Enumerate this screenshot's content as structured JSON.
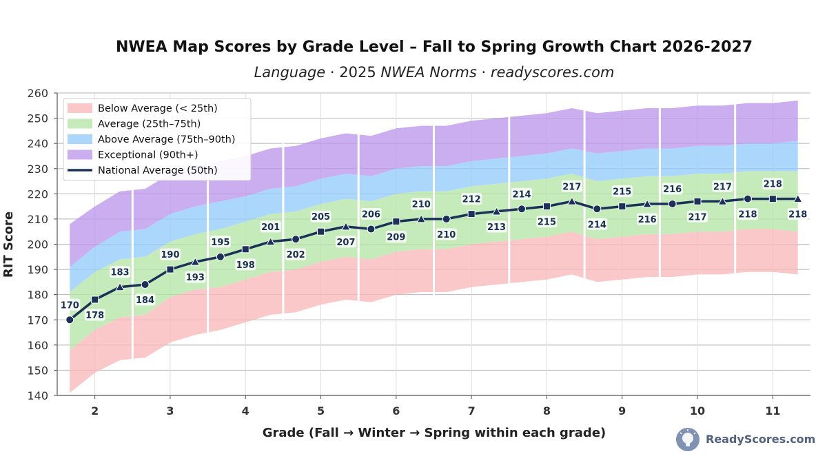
{
  "title": "NWEA Map Scores by Grade Level – Fall to Spring Growth Chart 2026-2027",
  "subtitle": {
    "part1": "Language",
    "sep1": "·",
    "part2_plain": "2025",
    "part2_italic": "NWEA Norms",
    "sep2": "·",
    "part3": "readyscores.com"
  },
  "brand": {
    "text": "ReadyScores.com",
    "icon": "lightbulb-brain-icon"
  },
  "chart_data": {
    "type": "area",
    "title": "NWEA Map Scores by Grade Level – Fall to Spring Growth Chart 2026-2027",
    "xlabel": "Grade (Fall → Winter → Spring within each grade)",
    "ylabel": "RIT Score",
    "ylim": [
      140,
      260
    ],
    "yticks": [
      140,
      150,
      160,
      170,
      180,
      190,
      200,
      210,
      220,
      230,
      240,
      250,
      260
    ],
    "xlim": [
      1.5,
      11.5
    ],
    "xticks": [
      "2",
      "3",
      "4",
      "5",
      "6",
      "7",
      "8",
      "9",
      "10",
      "11"
    ],
    "grid": true,
    "legend_position": "upper-left",
    "x": [
      1.667,
      2.0,
      2.333,
      2.667,
      3.0,
      3.333,
      3.667,
      4.0,
      4.333,
      4.667,
      5.0,
      5.333,
      5.667,
      6.0,
      6.333,
      6.667,
      7.0,
      7.333,
      7.667,
      8.0,
      8.333,
      8.667,
      9.0,
      9.333,
      9.667,
      10.0,
      10.333,
      10.667,
      11.0,
      11.333
    ],
    "season_markers": [
      "circle",
      "square",
      "triangle"
    ],
    "bands": [
      {
        "name": "Below Average (< 25th)",
        "color": "#f8b9b9",
        "lower": [
          141,
          149,
          154,
          155,
          161,
          164,
          166,
          169,
          172,
          173,
          176,
          178,
          177,
          180,
          181,
          181,
          183,
          184,
          185,
          186,
          188,
          185,
          186,
          187,
          187,
          188,
          188,
          189,
          189,
          188
        ],
        "upper": [
          158,
          166,
          171,
          172,
          179,
          182,
          183,
          186,
          189,
          190,
          193,
          195,
          194,
          197,
          198,
          198,
          200,
          201,
          202,
          203,
          205,
          202,
          203,
          204,
          204,
          205,
          205,
          206,
          206,
          205
        ]
      },
      {
        "name": "Average (25th–75th)",
        "color": "#b6e6a6",
        "lower": [
          158,
          166,
          171,
          172,
          179,
          182,
          183,
          186,
          189,
          190,
          193,
          195,
          194,
          197,
          198,
          198,
          200,
          201,
          202,
          203,
          205,
          202,
          203,
          204,
          204,
          205,
          205,
          206,
          206,
          205
        ],
        "upper": [
          181,
          189,
          194,
          195,
          201,
          204,
          206,
          209,
          212,
          213,
          216,
          218,
          217,
          220,
          221,
          221,
          223,
          224,
          225,
          226,
          228,
          225,
          226,
          227,
          227,
          228,
          228,
          229,
          229,
          229
        ]
      },
      {
        "name": "Above Average (75th–90th)",
        "color": "#93ccfb",
        "lower": [
          181,
          189,
          194,
          195,
          201,
          204,
          206,
          209,
          212,
          213,
          216,
          218,
          217,
          220,
          221,
          221,
          223,
          224,
          225,
          226,
          228,
          225,
          226,
          227,
          227,
          228,
          228,
          229,
          229,
          229
        ],
        "upper": [
          191,
          199,
          205,
          206,
          212,
          215,
          217,
          219,
          222,
          223,
          226,
          228,
          227,
          230,
          231,
          231,
          233,
          234,
          235,
          236,
          238,
          236,
          237,
          238,
          238,
          239,
          239,
          240,
          240,
          241
        ]
      },
      {
        "name": "Exceptional (90th+)",
        "color": "#bc97ec",
        "lower": [
          191,
          199,
          205,
          206,
          212,
          215,
          217,
          219,
          222,
          223,
          226,
          228,
          227,
          230,
          231,
          231,
          233,
          234,
          235,
          236,
          238,
          236,
          237,
          238,
          238,
          239,
          239,
          240,
          240,
          241
        ],
        "upper": [
          208,
          215,
          221,
          222,
          228,
          231,
          233,
          235,
          238,
          239,
          242,
          244,
          243,
          246,
          247,
          247,
          249,
          250,
          251,
          252,
          254,
          252,
          253,
          254,
          254,
          255,
          255,
          256,
          256,
          257
        ]
      }
    ],
    "series": [
      {
        "name": "National Average (50th)",
        "color": "#1b3158",
        "values": [
          170,
          178,
          183,
          184,
          190,
          193,
          195,
          198,
          201,
          202,
          205,
          207,
          206,
          209,
          210,
          210,
          212,
          213,
          214,
          215,
          217,
          214,
          215,
          216,
          216,
          217,
          217,
          218,
          218,
          218
        ]
      }
    ],
    "data_labels": [
      "170",
      "178",
      "183",
      "184",
      "190",
      "193",
      "195",
      "198",
      "201",
      "202",
      "205",
      "207",
      "206",
      "209",
      "210",
      "210",
      "212",
      "213",
      "214",
      "215",
      "217",
      "214",
      "215",
      "216",
      "216",
      "217",
      "217",
      "218",
      "218",
      "218"
    ],
    "legend": [
      "Below Average (< 25th)",
      "Average (25th–75th)",
      "Above Average (75th–90th)",
      "Exceptional (90th+)",
      "National Average (50th)"
    ]
  }
}
